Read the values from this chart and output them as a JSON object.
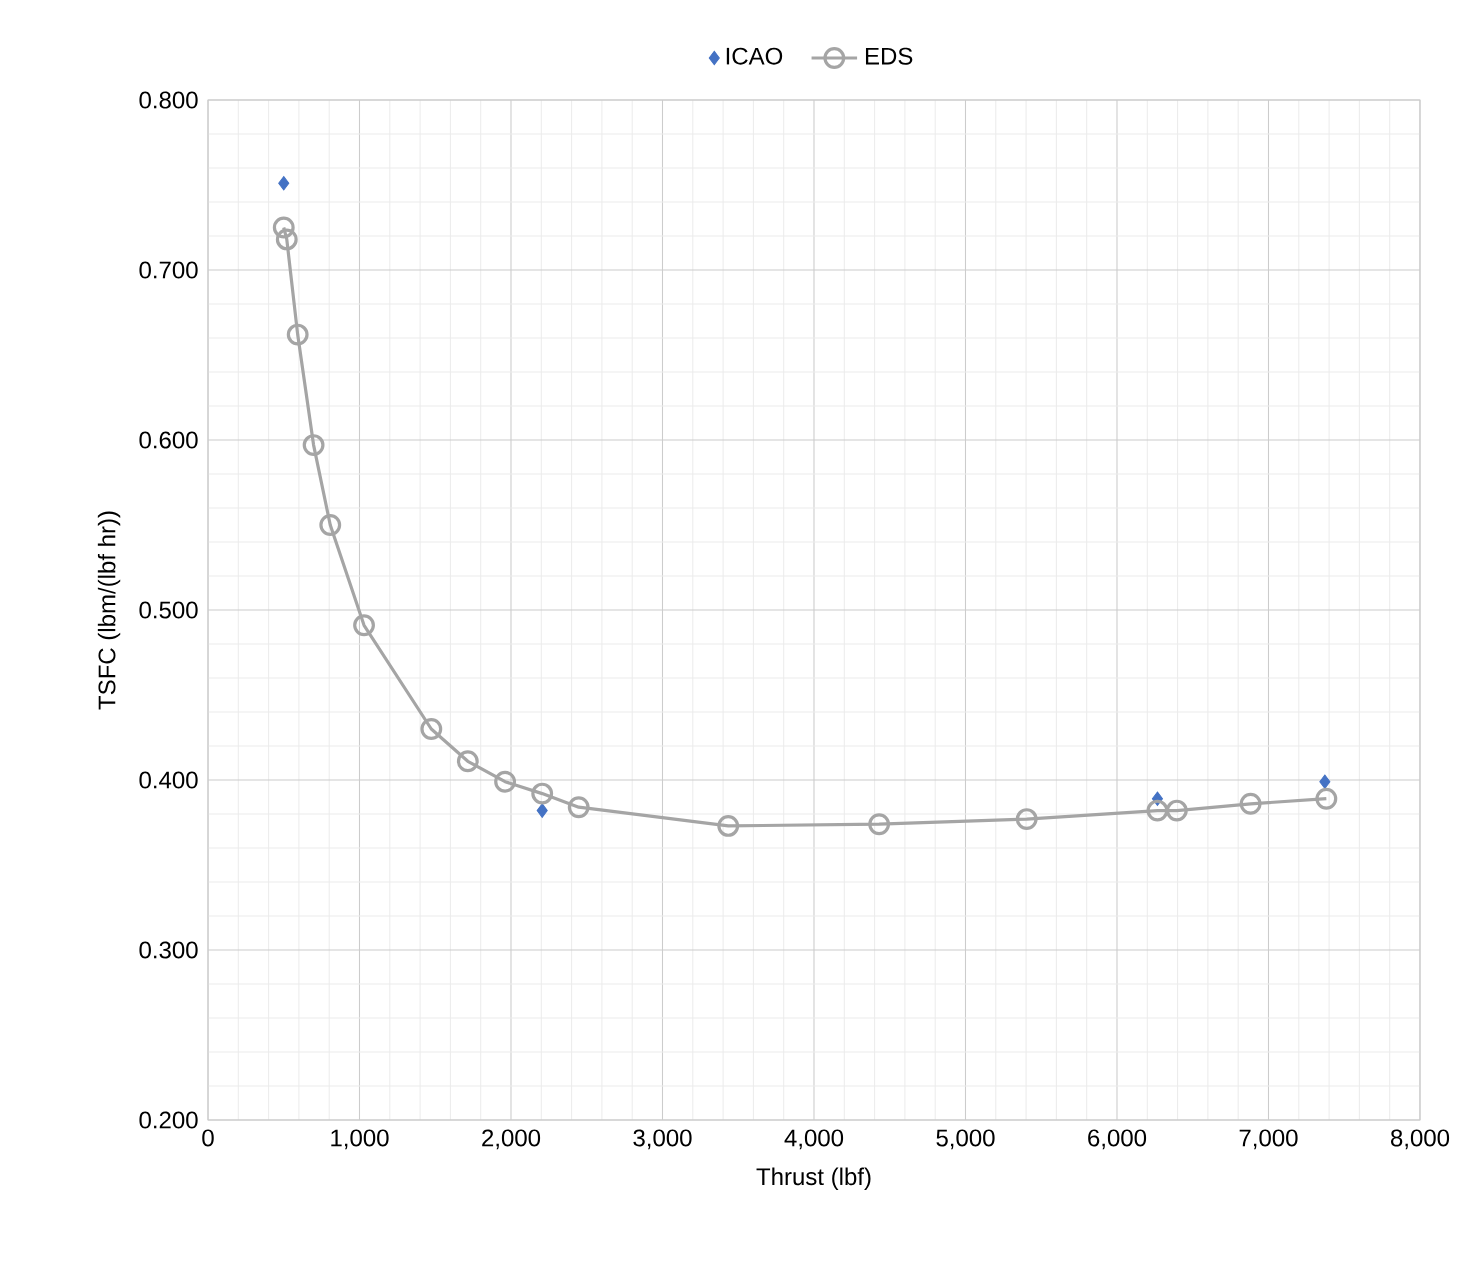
{
  "chart_data": {
    "type": "line",
    "xlabel": "Thrust (lbf)",
    "ylabel": "TSFC (lbm/(lbf hr))",
    "xlim": [
      0,
      8000
    ],
    "xticks": [
      0,
      {
        "value": 1000,
        "label": "1,000"
      },
      {
        "value": 2000,
        "label": "2,000"
      },
      {
        "value": 3000,
        "label": "3,000"
      },
      {
        "value": 4000,
        "label": "4,000"
      },
      {
        "value": 5000,
        "label": "5,000"
      },
      {
        "value": 6000,
        "label": "6,000"
      },
      {
        "value": 7000,
        "label": "7,000"
      },
      {
        "value": 8000,
        "label": "8,000"
      }
    ],
    "ylim": [
      0.2,
      0.8
    ],
    "yticks": [
      {
        "value": 0.2,
        "label": "0.200"
      },
      {
        "value": 0.3,
        "label": "0.300"
      },
      {
        "value": 0.4,
        "label": "0.400"
      },
      {
        "value": 0.5,
        "label": "0.500"
      },
      {
        "value": 0.6,
        "label": "0.600"
      },
      {
        "value": 0.7,
        "label": "0.700"
      },
      {
        "value": 0.8,
        "label": "0.800"
      }
    ],
    "grid": true,
    "legend": "top",
    "series": [
      {
        "name": "ICAO",
        "type": "scatter",
        "marker": "diamond",
        "color": "#4472c4",
        "x": [
          500,
          2206,
          6267,
          7372
        ],
        "values": [
          0.751,
          0.382,
          0.389,
          0.399
        ]
      },
      {
        "name": "EDS",
        "marker": "circle",
        "line_style": "solid",
        "color": "#a5a5a5",
        "x": [
          500,
          520,
          592,
          697,
          807,
          1030,
          1474,
          1715,
          1961,
          2206,
          2447,
          3434,
          4430,
          5404,
          6267,
          6395,
          6882,
          7382
        ],
        "values": [
          0.725,
          0.718,
          0.662,
          0.597,
          0.55,
          0.491,
          0.43,
          0.411,
          0.399,
          0.392,
          0.384,
          0.373,
          0.374,
          0.377,
          0.382,
          0.382,
          0.386,
          0.389
        ]
      }
    ]
  }
}
